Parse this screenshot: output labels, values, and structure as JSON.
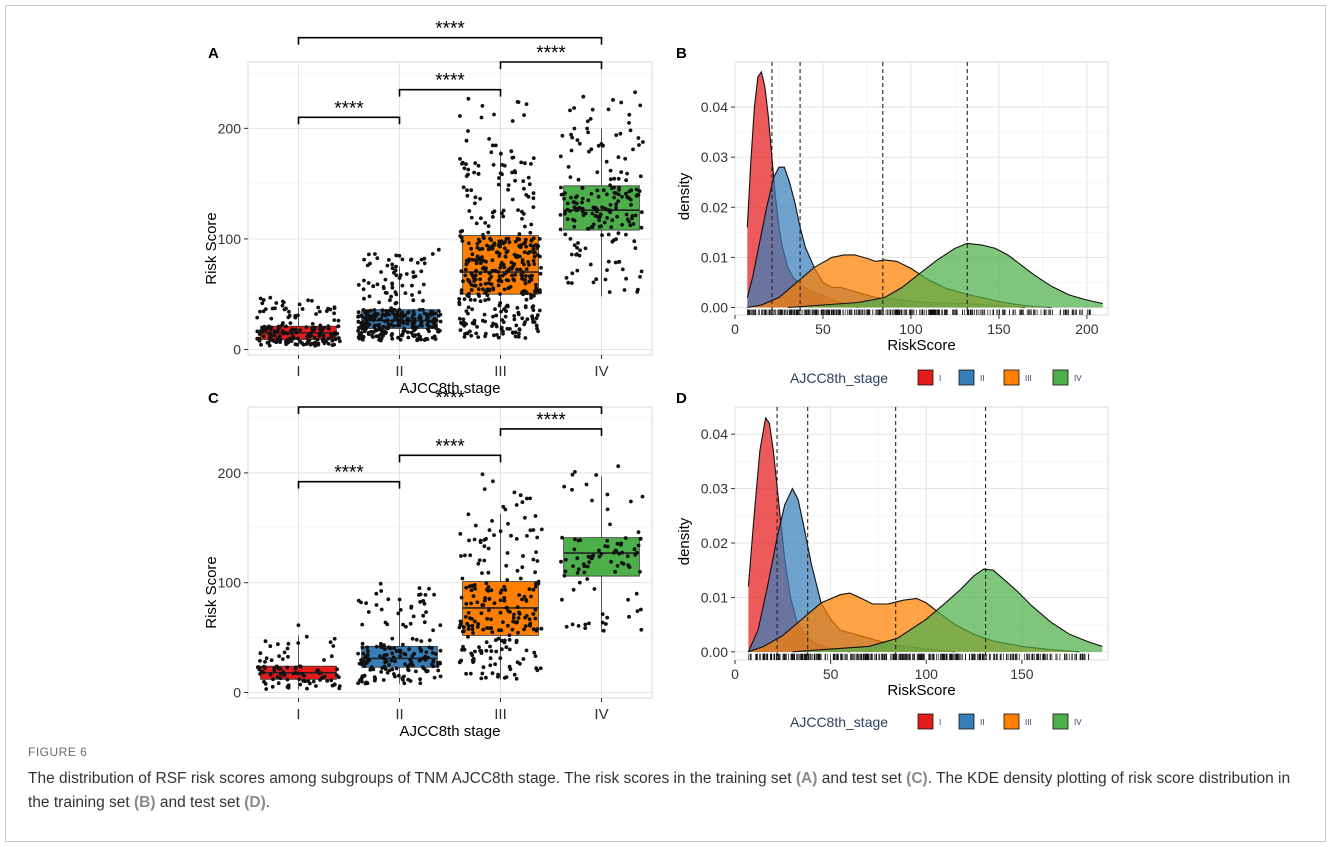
{
  "figure": {
    "label": "FIGURE 6",
    "caption": {
      "s1": "The distribution of RSF risk scores among subgroups of TNM AJCC8th stage. The risk scores in the training set ",
      "refA": "(A)",
      "s2": " and test set ",
      "refC": "(C)",
      "s3": ". The KDE density plotting of risk score distribution in the training set ",
      "refB": "(B)",
      "s4": " and test set ",
      "refD": "(D)",
      "s5": "."
    }
  },
  "colors": {
    "I": "#e41a1c",
    "II": "#377eb8",
    "III": "#ff7f00",
    "IV": "#4daf4a"
  },
  "chart_data": [
    {
      "panel": "A",
      "type": "box",
      "xlabel": "AJCC8th stage",
      "ylabel": "Risk Score",
      "categories": [
        "I",
        "II",
        "III",
        "IV"
      ],
      "ylim": [
        -5,
        260
      ],
      "yticks": [
        0,
        100,
        200
      ],
      "boxes": [
        {
          "q1": 9,
          "median": 15,
          "q3": 21,
          "min": 3,
          "max": 38
        },
        {
          "q1": 19,
          "median": 26,
          "q3": 36,
          "min": 8,
          "max": 75
        },
        {
          "q1": 50,
          "median": 70,
          "q3": 103,
          "min": 10,
          "max": 180
        },
        {
          "q1": 108,
          "median": 126,
          "q3": 148,
          "min": 48,
          "max": 200
        }
      ],
      "n_points": [
        180,
        300,
        420,
        200
      ],
      "signif": [
        {
          "from": 0,
          "to": 1,
          "y": 210,
          "label": "****"
        },
        {
          "from": 1,
          "to": 2,
          "y": 235,
          "label": "****"
        },
        {
          "from": 2,
          "to": 3,
          "y": 260,
          "label": "****"
        },
        {
          "from": 0,
          "to": 3,
          "y": 282,
          "label": "****"
        }
      ]
    },
    {
      "panel": "B",
      "type": "area",
      "xlabel": "RiskScore",
      "ylabel": "density",
      "xlim": [
        0,
        212
      ],
      "ylim": [
        -0.0015,
        0.049
      ],
      "xticks": [
        0,
        50,
        100,
        150,
        200
      ],
      "yticks": [
        0.0,
        0.01,
        0.02,
        0.03,
        0.04
      ],
      "ytick_labels": [
        "0.00",
        "0.01",
        "0.02",
        "0.03",
        "0.04"
      ],
      "vlines": [
        21,
        37,
        84,
        132
      ],
      "series": [
        {
          "name": "I",
          "x": [
            7,
            9,
            11,
            13,
            15,
            17,
            19,
            21,
            23,
            25,
            27,
            30,
            33,
            36,
            40,
            45,
            50,
            55,
            60,
            70
          ],
          "y": [
            0.016,
            0.029,
            0.04,
            0.046,
            0.047,
            0.044,
            0.038,
            0.03,
            0.022,
            0.016,
            0.012,
            0.008,
            0.006,
            0.005,
            0.004,
            0.003,
            0.0025,
            0.0015,
            0.001,
            0.0
          ]
        },
        {
          "name": "II",
          "x": [
            7,
            10,
            14,
            18,
            22,
            25,
            28,
            31,
            34,
            37,
            40,
            45,
            50,
            55,
            60,
            70,
            80,
            95,
            110,
            130,
            150,
            165
          ],
          "y": [
            0.002,
            0.006,
            0.013,
            0.02,
            0.026,
            0.028,
            0.028,
            0.025,
            0.021,
            0.016,
            0.012,
            0.008,
            0.005,
            0.004,
            0.004,
            0.003,
            0.002,
            0.0015,
            0.001,
            0.0008,
            0.0004,
            0.0
          ]
        },
        {
          "name": "III",
          "x": [
            7,
            15,
            25,
            35,
            45,
            55,
            62,
            68,
            75,
            80,
            85,
            92,
            100,
            110,
            120,
            130,
            140,
            150,
            160,
            170,
            180
          ],
          "y": [
            0.0,
            0.0005,
            0.002,
            0.005,
            0.008,
            0.01,
            0.0105,
            0.0105,
            0.0098,
            0.0092,
            0.0095,
            0.0092,
            0.0078,
            0.0055,
            0.0038,
            0.0028,
            0.002,
            0.0012,
            0.0006,
            0.0002,
            0.0
          ]
        },
        {
          "name": "IV",
          "x": [
            30,
            50,
            70,
            85,
            95,
            105,
            115,
            125,
            132,
            140,
            148,
            155,
            160,
            170,
            180,
            190,
            200,
            209
          ],
          "y": [
            0.0,
            0.0005,
            0.001,
            0.002,
            0.004,
            0.0068,
            0.0095,
            0.0118,
            0.0128,
            0.0125,
            0.0118,
            0.0105,
            0.0092,
            0.0065,
            0.0042,
            0.0025,
            0.0015,
            0.0008
          ]
        }
      ],
      "legend": {
        "title": "AJCC8th_stage",
        "entries": [
          "I",
          "II",
          "III",
          "IV"
        ],
        "position": "bottom"
      }
    },
    {
      "panel": "C",
      "type": "box",
      "xlabel": "AJCC8th stage",
      "ylabel": "Risk Score",
      "categories": [
        "I",
        "II",
        "III",
        "IV"
      ],
      "ylim": [
        -5,
        260
      ],
      "yticks": [
        0,
        100,
        200
      ],
      "boxes": [
        {
          "q1": 12,
          "median": 18,
          "q3": 24,
          "min": 3,
          "max": 52
        },
        {
          "q1": 23,
          "median": 31,
          "q3": 42,
          "min": 8,
          "max": 85
        },
        {
          "q1": 52,
          "median": 77,
          "q3": 101,
          "min": 12,
          "max": 163
        },
        {
          "q1": 106,
          "median": 127,
          "q3": 141,
          "min": 55,
          "max": 197
        }
      ],
      "n_points": [
        90,
        180,
        230,
        90
      ],
      "signif": [
        {
          "from": 0,
          "to": 1,
          "y": 192,
          "label": "****"
        },
        {
          "from": 1,
          "to": 2,
          "y": 216,
          "label": "****"
        },
        {
          "from": 2,
          "to": 3,
          "y": 240,
          "label": "****"
        },
        {
          "from": 0,
          "to": 3,
          "y": 260,
          "label": "****"
        }
      ]
    },
    {
      "panel": "D",
      "type": "area",
      "xlabel": "RiskScore",
      "ylabel": "density",
      "xlim": [
        0,
        195
      ],
      "ylim": [
        -0.0015,
        0.045
      ],
      "xticks": [
        0,
        50,
        100,
        150
      ],
      "yticks": [
        0.0,
        0.01,
        0.02,
        0.03,
        0.04
      ],
      "ytick_labels": [
        "0.00",
        "0.01",
        "0.02",
        "0.03",
        "0.04"
      ],
      "vlines": [
        22,
        38,
        84,
        131
      ],
      "series": [
        {
          "name": "I",
          "x": [
            7,
            10,
            13,
            16,
            18,
            20,
            23,
            26,
            29,
            32,
            35,
            40,
            45,
            50,
            60
          ],
          "y": [
            0.012,
            0.025,
            0.037,
            0.043,
            0.042,
            0.037,
            0.027,
            0.017,
            0.01,
            0.006,
            0.004,
            0.002,
            0.0012,
            0.0005,
            0.0
          ]
        },
        {
          "name": "II",
          "x": [
            7,
            12,
            17,
            22,
            26,
            30,
            33,
            36,
            40,
            45,
            50,
            55,
            60,
            70,
            80,
            90,
            100,
            115
          ],
          "y": [
            0.0,
            0.004,
            0.012,
            0.021,
            0.027,
            0.03,
            0.028,
            0.023,
            0.016,
            0.009,
            0.006,
            0.004,
            0.0035,
            0.0025,
            0.0015,
            0.001,
            0.0005,
            0.0
          ]
        },
        {
          "name": "III",
          "x": [
            7,
            15,
            25,
            35,
            45,
            55,
            60,
            65,
            72,
            80,
            88,
            95,
            100,
            108,
            115,
            125,
            135,
            150,
            165,
            180
          ],
          "y": [
            0.0,
            0.001,
            0.003,
            0.006,
            0.009,
            0.0105,
            0.0108,
            0.01,
            0.0088,
            0.0088,
            0.0095,
            0.0098,
            0.009,
            0.0068,
            0.005,
            0.0032,
            0.002,
            0.001,
            0.0004,
            0.0
          ]
        },
        {
          "name": "IV",
          "x": [
            30,
            50,
            70,
            85,
            100,
            110,
            118,
            125,
            130,
            135,
            140,
            148,
            155,
            165,
            175,
            185,
            192
          ],
          "y": [
            0.0,
            0.0005,
            0.001,
            0.0025,
            0.006,
            0.009,
            0.0115,
            0.014,
            0.0152,
            0.015,
            0.0135,
            0.011,
            0.0085,
            0.0055,
            0.0032,
            0.0018,
            0.001
          ]
        }
      ],
      "legend": {
        "title": "AJCC8th_stage",
        "entries": [
          "I",
          "II",
          "III",
          "IV"
        ],
        "position": "bottom"
      }
    }
  ]
}
